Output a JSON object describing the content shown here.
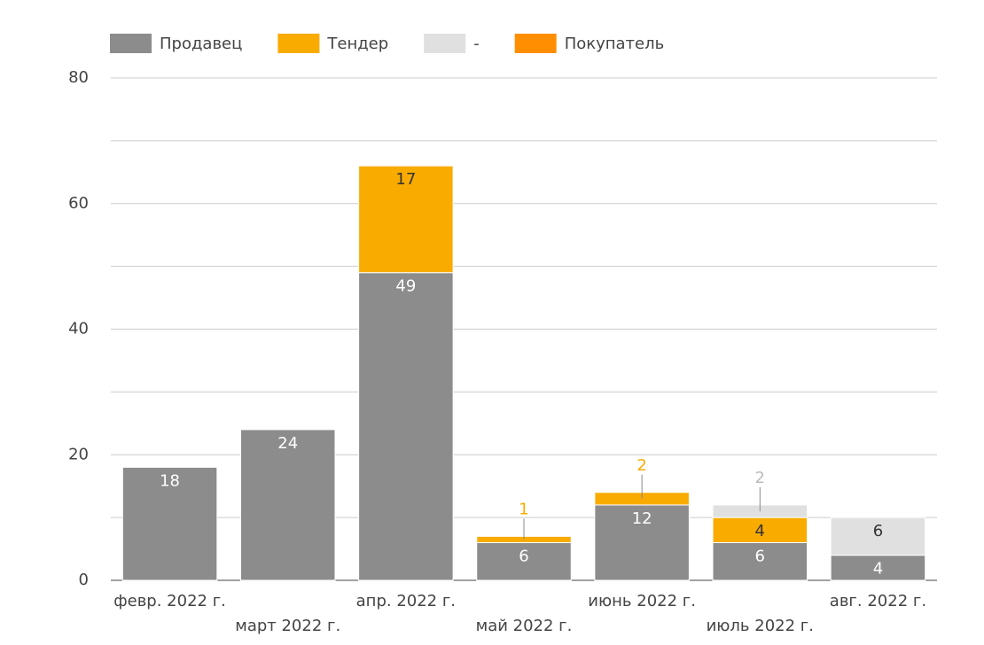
{
  "chart_data": {
    "type": "stacked_bar",
    "categories": [
      "февр. 2022 г.",
      "март 2022 г.",
      "апр. 2022 г.",
      "май 2022 г.",
      "июнь 2022 г.",
      "июль 2022 г.",
      "авг. 2022 г."
    ],
    "series": [
      {
        "name": "Продавец",
        "color": "#8c8c8c",
        "values": [
          18,
          24,
          49,
          6,
          12,
          6,
          4
        ]
      },
      {
        "name": "Тендер",
        "color": "#f9ab00",
        "values": [
          null,
          null,
          17,
          1,
          2,
          4,
          null
        ]
      },
      {
        "name": "-",
        "color": "#e0e0e0",
        "values": [
          null,
          null,
          null,
          null,
          null,
          2,
          6
        ]
      },
      {
        "name": "Покупатель",
        "color": "#ff8f00",
        "values": [
          null,
          null,
          null,
          null,
          null,
          null,
          null
        ]
      }
    ],
    "ylim": [
      0,
      80
    ],
    "yticks": [
      0,
      20,
      40,
      60,
      80
    ],
    "minor_yticks": [
      10,
      30,
      50,
      70
    ],
    "grid": true
  }
}
